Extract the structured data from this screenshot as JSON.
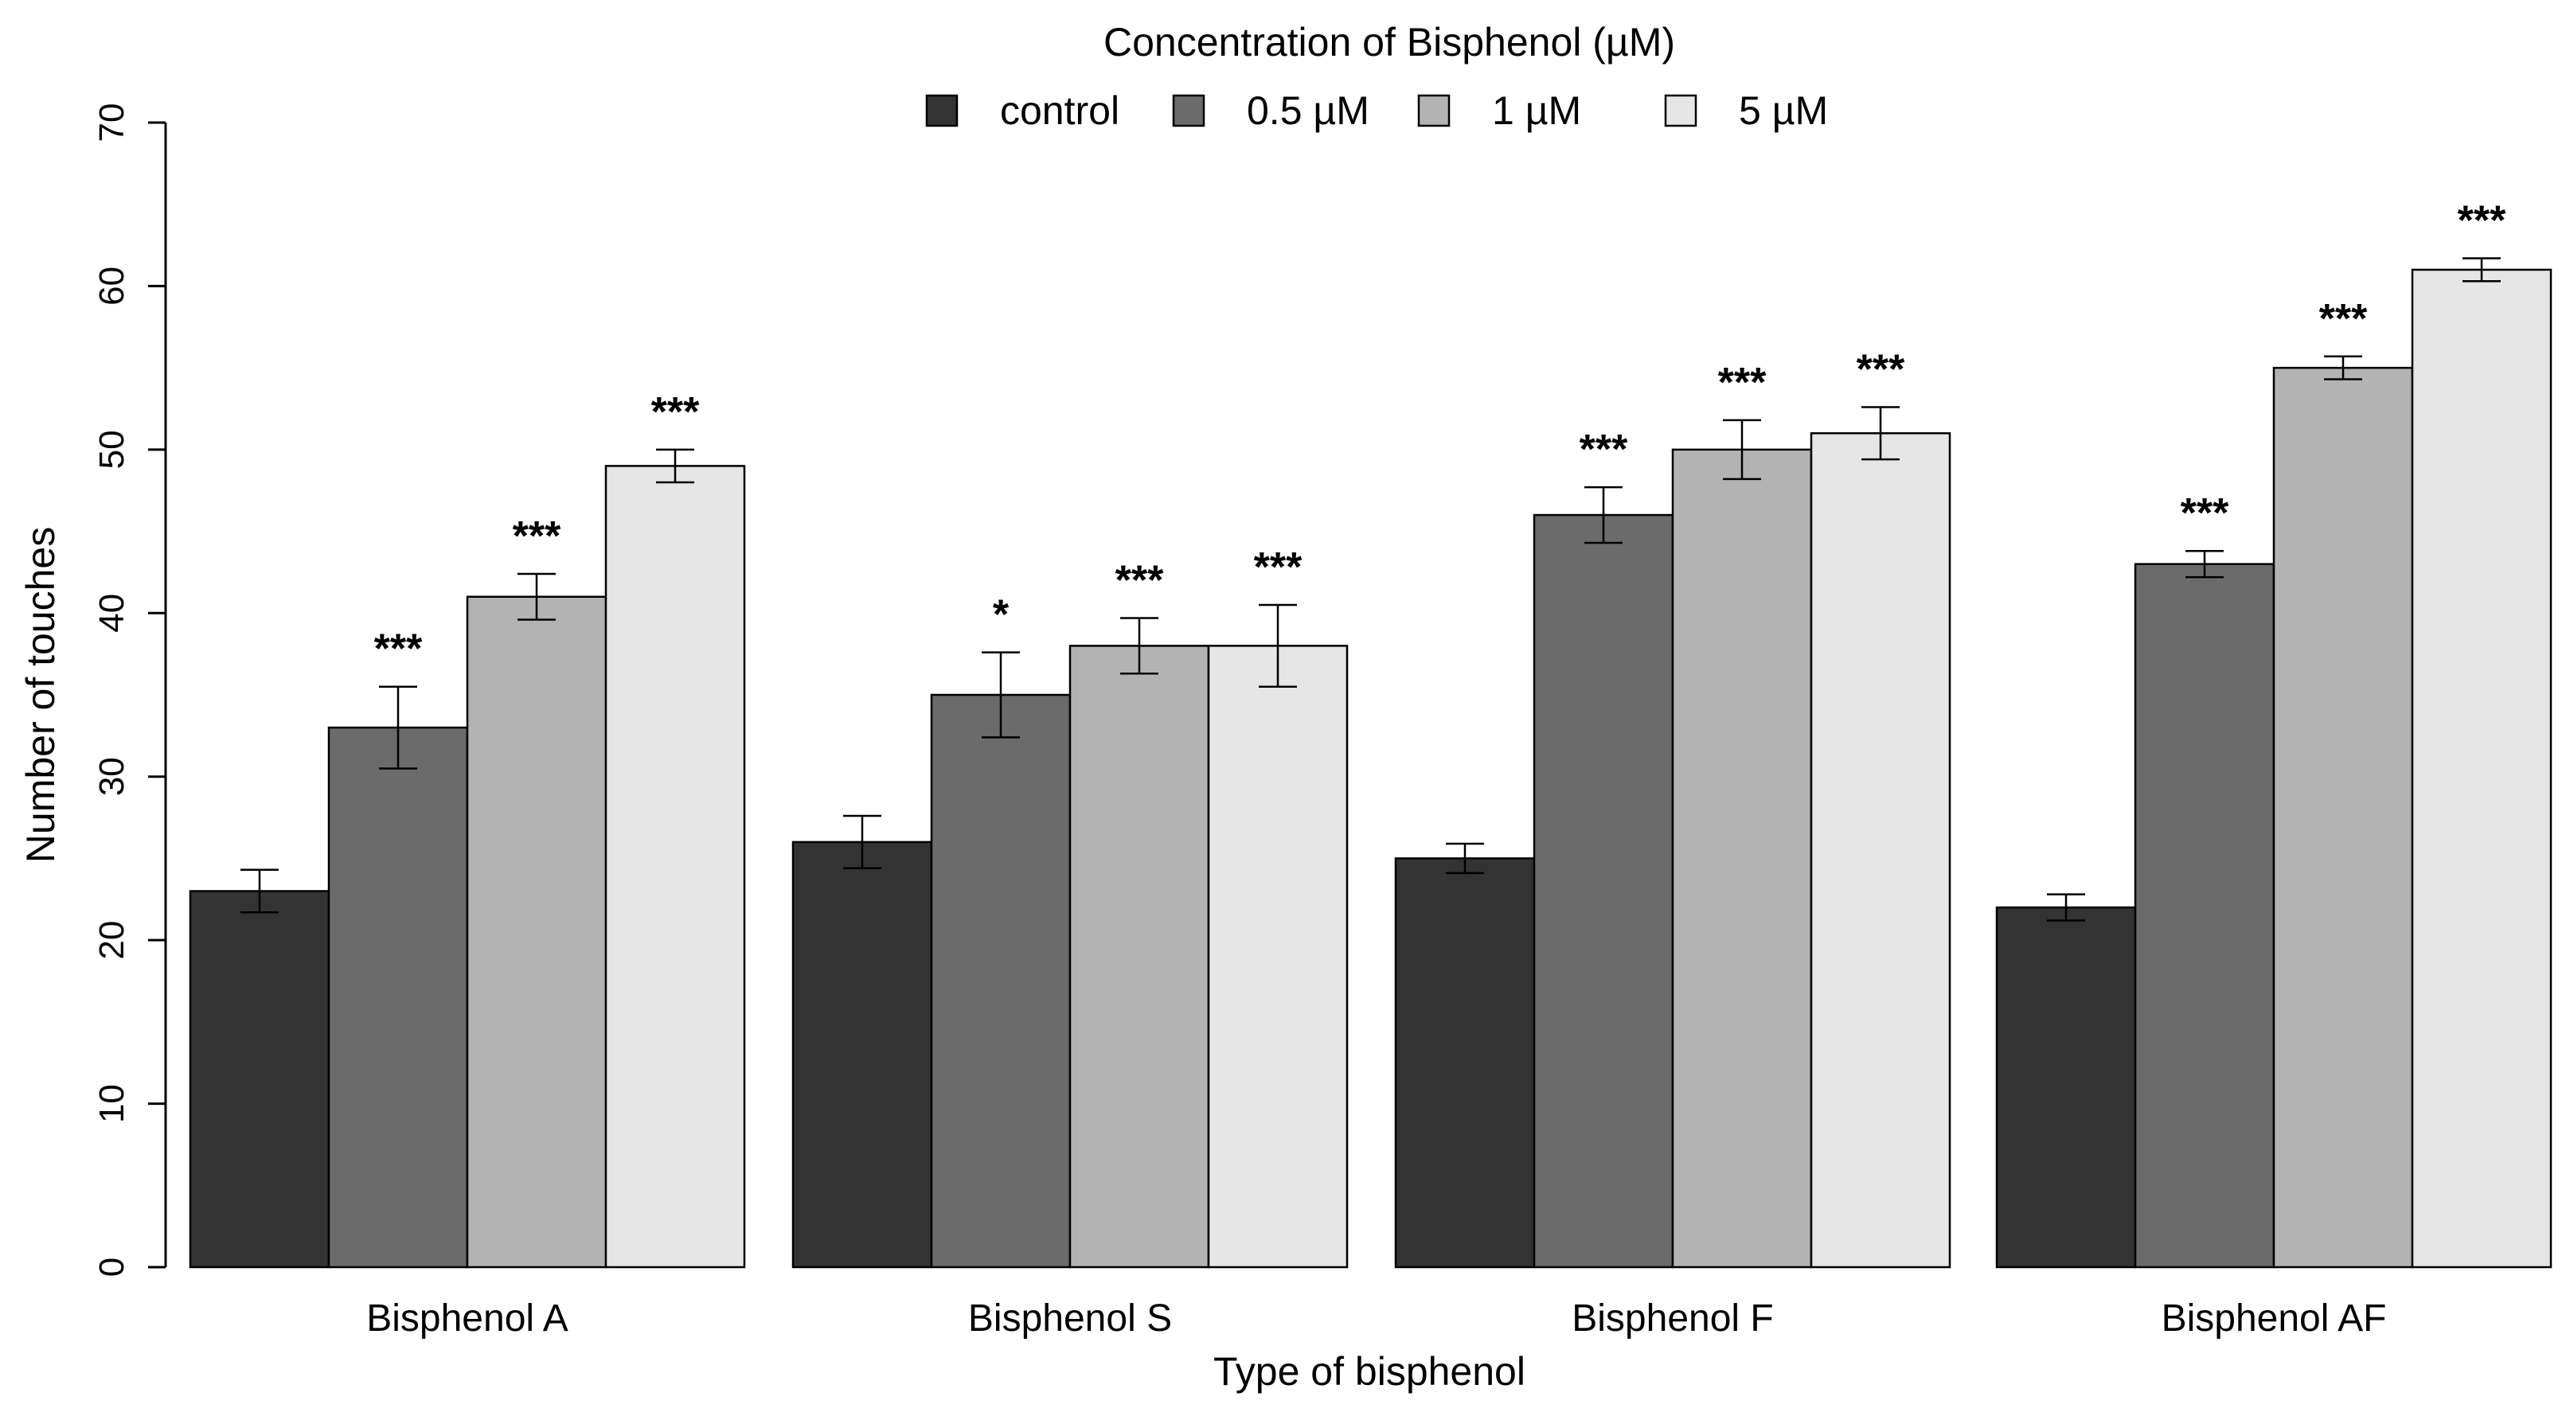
{
  "chart_data": {
    "type": "bar",
    "title": "",
    "xlabel": "Type of bisphenol",
    "ylabel": "Number of touches",
    "ylim": [
      0,
      70
    ],
    "yticks": [
      0,
      10,
      20,
      30,
      40,
      50,
      60,
      70
    ],
    "legend_title": "Concentration of Bisphenol (µM)",
    "legend_position": "top-center",
    "categories": [
      "Bisphenol A",
      "Bisphenol S",
      "Bisphenol F",
      "Bisphenol AF"
    ],
    "series": [
      {
        "name": "control",
        "color": "#333333",
        "values": [
          23,
          26,
          25,
          22
        ],
        "errors": [
          1.3,
          1.6,
          0.9,
          0.8
        ],
        "significance": [
          "",
          "",
          "",
          ""
        ]
      },
      {
        "name": "0.5 µM",
        "color": "#6b6b6b",
        "values": [
          33,
          35,
          46,
          43
        ],
        "errors": [
          2.5,
          2.6,
          1.7,
          0.8
        ],
        "significance": [
          "***",
          "*",
          "***",
          "***"
        ]
      },
      {
        "name": "1 µM",
        "color": "#b3b3b3",
        "values": [
          41,
          38,
          50,
          55
        ],
        "errors": [
          1.4,
          1.7,
          1.8,
          0.7
        ],
        "significance": [
          "***",
          "***",
          "***",
          "***"
        ]
      },
      {
        "name": "5 µM",
        "color": "#e6e6e6",
        "values": [
          49,
          38,
          51,
          61
        ],
        "errors": [
          1.0,
          2.5,
          1.6,
          0.7
        ],
        "significance": [
          "***",
          "***",
          "***",
          "***"
        ]
      }
    ]
  }
}
